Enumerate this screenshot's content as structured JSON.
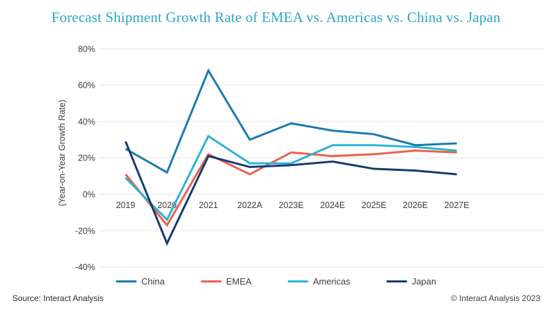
{
  "title": "Forecast Shipment Growth Rate of EMEA vs. Americas vs. China vs. Japan",
  "footer": {
    "source": "Source: Interact Analysis",
    "copyright": "© Interact Analysis 2023"
  },
  "colors": {
    "title": "#2ba6c9",
    "text": "#3d3d3d",
    "grid": "#e9e9e9",
    "background": "#ffffff"
  },
  "chart_data": {
    "type": "line",
    "title": "Forecast Shipment Growth Rate of EMEA vs. Americas vs. China vs. Japan",
    "xlabel": "",
    "ylabel": "(Year-on-Year Growth Rate)",
    "categories": [
      "2019",
      "2020",
      "2021",
      "2022A",
      "2023E",
      "2024E",
      "2025E",
      "2026E",
      "2027E"
    ],
    "series": [
      {
        "name": "China",
        "color": "#1b79b3",
        "values": [
          25,
          12,
          68,
          30,
          39,
          35,
          33,
          27,
          28
        ]
      },
      {
        "name": "EMEA",
        "color": "#eb604d",
        "values": [
          11,
          -17,
          22,
          11,
          23,
          21,
          22,
          24,
          23
        ]
      },
      {
        "name": "Americas",
        "color": "#2bb3d4",
        "values": [
          9,
          -14,
          32,
          17,
          17,
          27,
          27,
          26,
          24
        ]
      },
      {
        "name": "Japan",
        "color": "#153a70",
        "values": [
          29,
          -27,
          21,
          15,
          16,
          18,
          14,
          13,
          11
        ]
      }
    ],
    "ylim": [
      -40,
      80
    ],
    "ytick_step": 20,
    "ytick_suffix": "%",
    "grid": true,
    "legend_position": "bottom",
    "x_labels_at_zero_line": true
  }
}
